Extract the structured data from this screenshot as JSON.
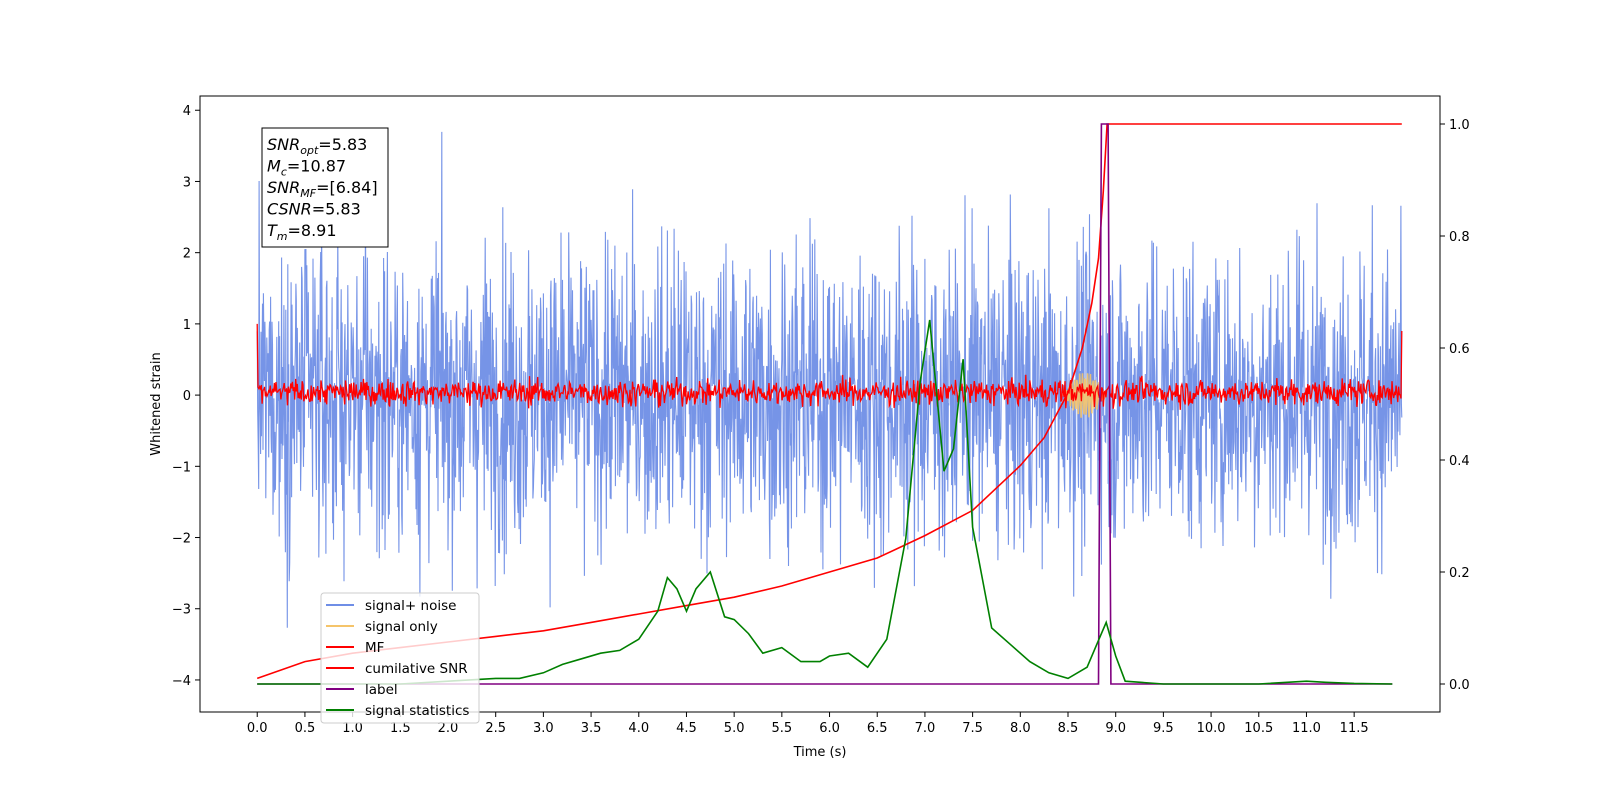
{
  "chart_data": {
    "type": "line",
    "title": "",
    "xlabel": "Time (s)",
    "ylabel": "Whitened strain",
    "ylabel_right": "",
    "xlim": [
      -0.6,
      12.4
    ],
    "ylim": [
      -4.45,
      4.2
    ],
    "ylim_right": [
      -0.05,
      1.05
    ],
    "xticks": [
      "0.0",
      "0.5",
      "1.0",
      "1.5",
      "2.0",
      "2.5",
      "3.0",
      "3.5",
      "4.0",
      "4.5",
      "5.0",
      "5.5",
      "6.0",
      "6.5",
      "7.0",
      "7.5",
      "8.0",
      "8.5",
      "9.0",
      "9.5",
      "10.0",
      "10.5",
      "11.0",
      "11.5"
    ],
    "yticks": [
      "4",
      "3",
      "2",
      "1",
      "0",
      "−1",
      "−2",
      "−3",
      "−4"
    ],
    "yticks_right": [
      "1.0",
      "0.8",
      "0.6",
      "0.4",
      "0.2",
      "0.0"
    ],
    "grid": false,
    "legend_position": "lower-left",
    "info_box": {
      "lines": [
        {
          "name": "SNR",
          "sub": "opt",
          "value": "=5.83"
        },
        {
          "name": "M",
          "sub": "c",
          "value": "=10.87"
        },
        {
          "name": "SNR",
          "sub": "MF",
          "value": "=[6.84]"
        },
        {
          "name": "CSNR",
          "sub": "",
          "value": "=5.83"
        },
        {
          "name": "T",
          "sub": "m",
          "value": "=8.91"
        }
      ]
    },
    "series": [
      {
        "name": "signal+ noise",
        "color": "#6f8ee6",
        "axis": "left",
        "description_values": {
          "x_range": [
            0.0,
            12.0
          ],
          "amplitude_range": [
            -4.0,
            3.85
          ],
          "typical_spread": [
            -2.5,
            2.5
          ]
        }
      },
      {
        "name": "signal only",
        "color": "#f5c46a",
        "axis": "left",
        "peaks": {
          "x": [
            8.6,
            8.75,
            8.87
          ],
          "y": [
            0.2,
            0.3,
            0.35
          ]
        }
      },
      {
        "name": "MF",
        "color": "#ff0000",
        "axis": "left",
        "description_values": {
          "x_range": [
            0.0,
            12.0
          ],
          "amplitude_range": [
            -0.25,
            0.45
          ],
          "start_value": 1.0,
          "end_value": 0.9
        }
      },
      {
        "name": "cumilative SNR",
        "color": "#ff0000",
        "axis": "right",
        "x": [
          0.0,
          0.5,
          1.0,
          1.5,
          2.0,
          2.5,
          3.0,
          3.5,
          4.0,
          4.5,
          5.0,
          5.5,
          6.0,
          6.5,
          7.0,
          7.5,
          8.0,
          8.25,
          8.5,
          8.65,
          8.75,
          8.82,
          8.87,
          8.91,
          9.0,
          12.0
        ],
        "y": [
          0.01,
          0.04,
          0.055,
          0.065,
          0.075,
          0.085,
          0.095,
          0.11,
          0.125,
          0.14,
          0.155,
          0.175,
          0.2,
          0.225,
          0.265,
          0.31,
          0.39,
          0.44,
          0.52,
          0.6,
          0.68,
          0.76,
          0.88,
          1.0,
          1.0,
          1.0
        ]
      },
      {
        "name": "label",
        "color": "#800080",
        "axis": "right",
        "x": [
          0.0,
          8.82,
          8.85,
          8.92,
          8.95,
          11.0,
          11.5,
          11.9
        ],
        "y": [
          0.0,
          0.0,
          1.0,
          1.0,
          0.0,
          0.0,
          0.0,
          0.0
        ]
      },
      {
        "name": "signal statistics",
        "color": "#008000",
        "axis": "right",
        "x": [
          0.0,
          0.5,
          1.0,
          1.5,
          2.0,
          2.5,
          2.75,
          3.0,
          3.2,
          3.4,
          3.6,
          3.8,
          4.0,
          4.2,
          4.3,
          4.4,
          4.5,
          4.6,
          4.75,
          4.9,
          5.0,
          5.15,
          5.3,
          5.5,
          5.7,
          5.9,
          6.0,
          6.2,
          6.4,
          6.6,
          6.8,
          6.95,
          7.05,
          7.2,
          7.3,
          7.4,
          7.5,
          7.7,
          7.9,
          8.1,
          8.3,
          8.5,
          8.7,
          8.8,
          8.9,
          9.0,
          9.1,
          9.5,
          10.0,
          10.5,
          11.0,
          11.2,
          11.5,
          11.9
        ],
        "y": [
          0.0,
          0.0,
          0.0,
          0.0,
          0.005,
          0.01,
          0.01,
          0.02,
          0.035,
          0.045,
          0.055,
          0.06,
          0.08,
          0.13,
          0.19,
          0.17,
          0.13,
          0.17,
          0.2,
          0.12,
          0.115,
          0.09,
          0.055,
          0.065,
          0.04,
          0.04,
          0.05,
          0.055,
          0.03,
          0.08,
          0.26,
          0.54,
          0.65,
          0.38,
          0.42,
          0.58,
          0.28,
          0.1,
          0.07,
          0.04,
          0.02,
          0.01,
          0.03,
          0.07,
          0.11,
          0.05,
          0.005,
          0.0,
          0.0,
          0.0,
          0.005,
          0.003,
          0.001,
          0.0
        ]
      }
    ]
  }
}
